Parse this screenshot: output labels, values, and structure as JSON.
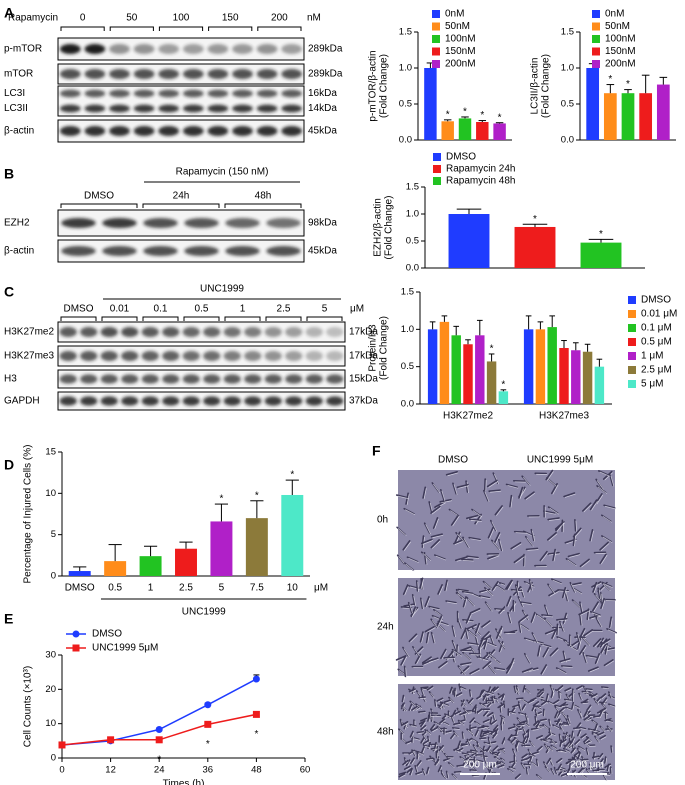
{
  "panels": [
    "A",
    "B",
    "C",
    "D",
    "E",
    "F"
  ],
  "blots": [
    {
      "header": "Rapamycin",
      "lanes": [
        "0",
        "50",
        "100",
        "150",
        "200"
      ],
      "unit": "nM",
      "rows": [
        {
          "label": "p-mTOR",
          "size": "289kDa"
        },
        {
          "label": "mTOR",
          "size": "289kDa"
        },
        {
          "label": "LC3I",
          "size": "16kDa"
        },
        {
          "label": "LC3II",
          "size": "14kDa"
        },
        {
          "label": "β-actin",
          "size": "45kDa"
        }
      ]
    },
    {
      "header": "Rapamycin (150 nM)",
      "lanes": [
        "DMSO",
        "24h",
        "48h"
      ],
      "rows": [
        {
          "label": "EZH2",
          "size": "98kDa"
        },
        {
          "label": "β-actin",
          "size": "45kDa"
        }
      ]
    },
    {
      "header": "UNC1999",
      "lanes": [
        "DMSO",
        "0.01",
        "0.1",
        "0.5",
        "1",
        "2.5",
        "5"
      ],
      "unit": "μM",
      "rows": [
        {
          "label": "H3K27me2",
          "size": "17kDa"
        },
        {
          "label": "H3K27me3",
          "size": "17kDa"
        },
        {
          "label": "H3",
          "size": "15kDa"
        },
        {
          "label": "GAPDH",
          "size": "37kDa"
        }
      ]
    }
  ],
  "chart_data": [
    {
      "type": "bar",
      "ylabel": [
        "p-mTOR/β-actin",
        "(Fold Change)"
      ],
      "categories": [
        null
      ],
      "ylim": [
        0,
        1.5
      ],
      "yticks": [
        {
          "value": 0,
          "label": "0.0"
        },
        0.5,
        {
          "value": 1,
          "label": "1.0"
        },
        1.5
      ],
      "series": [
        {
          "name": "0nM",
          "color": "#1f3cff",
          "values": [
            1.0
          ],
          "errors": [
            0.07
          ],
          "stars": [
            null
          ]
        },
        {
          "name": "50nM",
          "color": "#ff8c1a",
          "values": [
            0.26
          ],
          "errors": [
            0.02
          ],
          "stars": [
            "*"
          ]
        },
        {
          "name": "100nM",
          "color": "#22c322",
          "values": [
            0.3
          ],
          "errors": [
            0.02
          ],
          "stars": [
            "*"
          ]
        },
        {
          "name": "150nM",
          "color": "#ee1c1c",
          "values": [
            0.25
          ],
          "errors": [
            0.02
          ],
          "stars": [
            "*"
          ]
        },
        {
          "name": "200nM",
          "color": "#b020c8",
          "values": [
            0.23
          ],
          "errors": [
            0.01
          ],
          "stars": [
            "*"
          ]
        }
      ]
    },
    {
      "type": "bar",
      "ylabel": [
        "LC3II/β-actin",
        "(Fold Change)"
      ],
      "categories": [
        null
      ],
      "ylim": [
        0,
        1.5
      ],
      "yticks": [
        {
          "value": 0,
          "label": "0.0"
        },
        0.5,
        {
          "value": 1,
          "label": "1.0"
        },
        1.5
      ],
      "series": [
        {
          "name": "0nM",
          "color": "#1f3cff",
          "values": [
            1.0
          ],
          "errors": [
            0.06
          ],
          "stars": [
            null
          ]
        },
        {
          "name": "50nM",
          "color": "#ff8c1a",
          "values": [
            0.65
          ],
          "errors": [
            0.12
          ],
          "stars": [
            "*"
          ]
        },
        {
          "name": "100nM",
          "color": "#22c322",
          "values": [
            0.65
          ],
          "errors": [
            0.05
          ],
          "stars": [
            "*"
          ]
        },
        {
          "name": "150nM",
          "color": "#ee1c1c",
          "values": [
            0.65
          ],
          "errors": [
            0.25
          ],
          "stars": [
            null
          ]
        },
        {
          "name": "200nM",
          "color": "#b020c8",
          "values": [
            0.77
          ],
          "errors": [
            0.1
          ],
          "stars": [
            null
          ]
        }
      ]
    },
    {
      "type": "bar",
      "ylabel": [
        "EZH2/β-actin",
        "(Fold Change)"
      ],
      "categories": [
        null
      ],
      "ylim": [
        0,
        1.5
      ],
      "yticks": [
        {
          "value": 0,
          "label": "0.0"
        },
        0.5,
        {
          "value": 1,
          "label": "1.0"
        },
        1.5
      ],
      "series": [
        {
          "name": "DMSO",
          "color": "#1f3cff",
          "values": [
            1.0
          ],
          "errors": [
            0.09
          ],
          "stars": [
            null
          ]
        },
        {
          "name": "Rapamycin 24h",
          "color": "#ee1c1c",
          "values": [
            0.76
          ],
          "errors": [
            0.05
          ],
          "stars": [
            "*"
          ]
        },
        {
          "name": "Rapamycin 48h",
          "color": "#22c322",
          "values": [
            0.47
          ],
          "errors": [
            0.06
          ],
          "stars": [
            "*"
          ]
        }
      ]
    },
    {
      "type": "bar",
      "ylabel": [
        "Protein/H3",
        "(Fold Change)"
      ],
      "categories": [
        "H3K27me2",
        "H3K27me3"
      ],
      "ylim": [
        0,
        1.5
      ],
      "yticks": [
        {
          "value": 0,
          "label": "0.0"
        },
        0.5,
        {
          "value": 1,
          "label": "1.0"
        },
        1.5
      ],
      "series": [
        {
          "name": "DMSO",
          "color": "#1f3cff",
          "values": [
            1.0,
            1.0
          ],
          "errors": [
            0.1,
            0.18
          ],
          "stars": [
            null,
            null
          ]
        },
        {
          "name": "0.01 μM",
          "color": "#ff8c1a",
          "values": [
            1.1,
            1.0
          ],
          "errors": [
            0.08,
            0.1
          ],
          "stars": [
            null,
            null
          ]
        },
        {
          "name": "0.1 μM",
          "color": "#22c322",
          "values": [
            0.92,
            1.03
          ],
          "errors": [
            0.12,
            0.15
          ],
          "stars": [
            null,
            null
          ]
        },
        {
          "name": "0.5 μM",
          "color": "#ee1c1c",
          "values": [
            0.8,
            0.75
          ],
          "errors": [
            0.06,
            0.1
          ],
          "stars": [
            null,
            null
          ]
        },
        {
          "name": "1 μM",
          "color": "#b020c8",
          "values": [
            0.92,
            0.72
          ],
          "errors": [
            0.2,
            0.1
          ],
          "stars": [
            null,
            null
          ]
        },
        {
          "name": "2.5 μM",
          "color": "#8c7a3a",
          "values": [
            0.57,
            0.7
          ],
          "errors": [
            0.1,
            0.1
          ],
          "stars": [
            "*",
            null
          ]
        },
        {
          "name": "5 μM",
          "color": "#4de8c8",
          "values": [
            0.17,
            0.5
          ],
          "errors": [
            0.02,
            0.1
          ],
          "stars": [
            "*",
            null
          ]
        }
      ]
    },
    {
      "type": "bar",
      "ylabel": [
        "Percentage of Injured Cells (%)"
      ],
      "categories": [
        "DMSO",
        "0.5",
        "1",
        "2.5",
        "5",
        "7.5",
        "10"
      ],
      "xunit": "μM",
      "xgroup": "UNC1999",
      "ylim": [
        0,
        15
      ],
      "yticks": [
        0,
        5,
        10,
        15
      ],
      "values": [
        0.6,
        1.8,
        2.4,
        3.3,
        6.6,
        7.0,
        9.8
      ],
      "errors": [
        0.5,
        2.0,
        1.2,
        0.8,
        2.1,
        2.1,
        1.8
      ],
      "stars": [
        null,
        null,
        null,
        null,
        "*",
        "*",
        "*"
      ],
      "colors": [
        "#1f3cff",
        "#ff8c1a",
        "#22c322",
        "#ee1c1c",
        "#b020c8",
        "#8c7a3a",
        "#4de8c8"
      ]
    },
    {
      "type": "line",
      "ylabel": [
        "Cell Counts (×10³)"
      ],
      "xlabel": "Times (h)",
      "x": [
        0,
        12,
        24,
        36,
        48
      ],
      "xlim": [
        0,
        60
      ],
      "xticks": [
        0,
        12,
        24,
        36,
        48,
        60
      ],
      "ylim": [
        0,
        30
      ],
      "yticks": [
        0,
        10,
        20,
        30
      ],
      "series": [
        {
          "name": "DMSO",
          "color": "#1f3cff",
          "marker": "circle",
          "values": [
            3.8,
            5.0,
            8.3,
            15.5,
            23.0
          ],
          "errors": [
            0.2,
            0.2,
            0.4,
            0.5,
            1.2
          ],
          "stars": [
            null,
            null,
            null,
            null,
            null
          ]
        },
        {
          "name": "UNC1999 5μM",
          "color": "#ee1c1c",
          "marker": "square",
          "values": [
            3.8,
            5.3,
            5.3,
            9.8,
            12.7
          ],
          "errors": [
            0.2,
            0.2,
            0.3,
            0.5,
            0.5
          ],
          "stars": [
            null,
            null,
            "*",
            "*",
            "*"
          ]
        }
      ]
    }
  ],
  "micrographs": {
    "columns": [
      "DMSO",
      "UNC1999 5μM"
    ],
    "rows": [
      "0h",
      "24h",
      "48h"
    ],
    "scale_bar": "200 μm"
  }
}
